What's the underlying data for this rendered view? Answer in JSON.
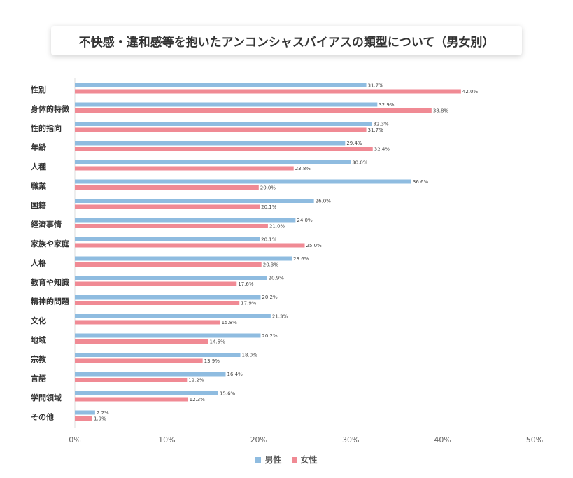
{
  "chart_data": {
    "type": "bar",
    "orientation": "horizontal",
    "title": "不快感・違和感等を抱いたアンコンシャスバイアスの類型について（男女別）",
    "categories": [
      "性別",
      "身体的特徴",
      "性的指向",
      "年齢",
      "人種",
      "職業",
      "国籍",
      "経済事情",
      "家族や家庭",
      "人格",
      "教育や知識",
      "精神的問題",
      "文化",
      "地域",
      "宗教",
      "言語",
      "学問領域",
      "その他"
    ],
    "series": [
      {
        "name": "男性",
        "color": "#8fbce0",
        "values": [
          31.7,
          32.9,
          32.3,
          29.4,
          30.0,
          36.6,
          26.0,
          24.0,
          20.1,
          23.6,
          20.9,
          20.2,
          21.3,
          20.2,
          18.0,
          16.4,
          15.6,
          2.2
        ]
      },
      {
        "name": "女性",
        "color": "#f08a94",
        "values": [
          42.0,
          38.8,
          31.7,
          32.4,
          23.8,
          20.0,
          20.1,
          21.0,
          25.0,
          20.3,
          17.6,
          17.9,
          15.8,
          14.5,
          13.9,
          12.2,
          12.3,
          1.9
        ]
      }
    ],
    "xlim": [
      0,
      50
    ],
    "xticks": [
      "0%",
      "10%",
      "20%",
      "30%",
      "40%",
      "50%"
    ],
    "legend_position": "bottom"
  }
}
